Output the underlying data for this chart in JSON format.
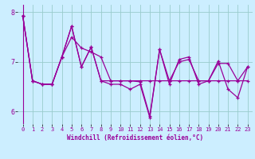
{
  "background_color": "#cceeff",
  "line_color": "#990099",
  "grid_color": "#99cccc",
  "xlim": [
    -0.5,
    23.5
  ],
  "ylim": [
    5.75,
    8.15
  ],
  "yticks": [
    6,
    7,
    8
  ],
  "xticks": [
    0,
    1,
    2,
    3,
    4,
    5,
    6,
    7,
    8,
    9,
    10,
    11,
    12,
    13,
    14,
    15,
    16,
    17,
    18,
    19,
    20,
    21,
    22,
    23
  ],
  "xlabel": "Windchill (Refroidissement éolien,°C)",
  "series1": [
    7.93,
    6.62,
    6.55,
    6.55,
    7.1,
    7.72,
    6.9,
    7.3,
    6.62,
    6.62,
    6.62,
    6.62,
    6.6,
    5.91,
    7.25,
    6.62,
    7.0,
    7.05,
    6.62,
    6.62,
    6.97,
    6.97,
    6.62,
    6.9
  ],
  "series2": [
    7.93,
    6.62,
    6.55,
    6.55,
    7.1,
    7.5,
    7.28,
    7.2,
    7.1,
    6.62,
    6.62,
    6.62,
    6.62,
    6.62,
    6.62,
    6.62,
    6.62,
    6.62,
    6.62,
    6.62,
    6.62,
    6.62,
    6.62,
    6.62
  ],
  "series3": [
    7.93,
    6.62,
    6.55,
    6.55,
    7.1,
    7.72,
    6.9,
    7.3,
    6.62,
    6.55,
    6.55,
    6.45,
    6.55,
    5.88,
    7.25,
    6.55,
    7.05,
    7.1,
    6.55,
    6.62,
    7.02,
    6.45,
    6.28,
    6.9
  ]
}
